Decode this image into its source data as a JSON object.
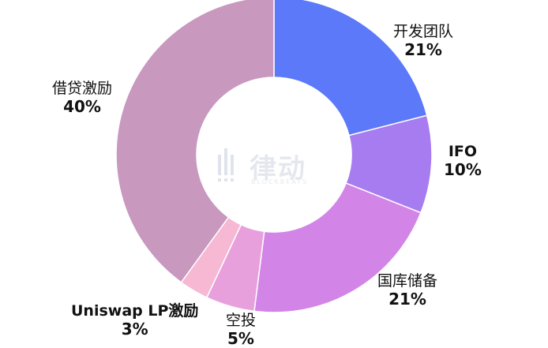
{
  "chart_data": {
    "type": "pie",
    "donut": true,
    "title": "",
    "slices": [
      {
        "label": "开发团队",
        "value": 21,
        "value_label": "21%",
        "color": "#5b79f9"
      },
      {
        "label": "IFO",
        "value": 10,
        "value_label": "10%",
        "color": "#a77cf0"
      },
      {
        "label": "国库储备",
        "value": 21,
        "value_label": "21%",
        "color": "#d285e6"
      },
      {
        "label": "空投",
        "value": 5,
        "value_label": "5%",
        "color": "#e8a0dc"
      },
      {
        "label": "Uniswap LP激励",
        "value": 3,
        "value_label": "3%",
        "color": "#f6b8d3"
      },
      {
        "label": "借贷激励",
        "value": 40,
        "value_label": "40%",
        "color": "#c898bf"
      }
    ],
    "legend": "labels beside slices"
  },
  "watermark": {
    "text": "律动",
    "subtext": "BLOCKBEATS"
  }
}
